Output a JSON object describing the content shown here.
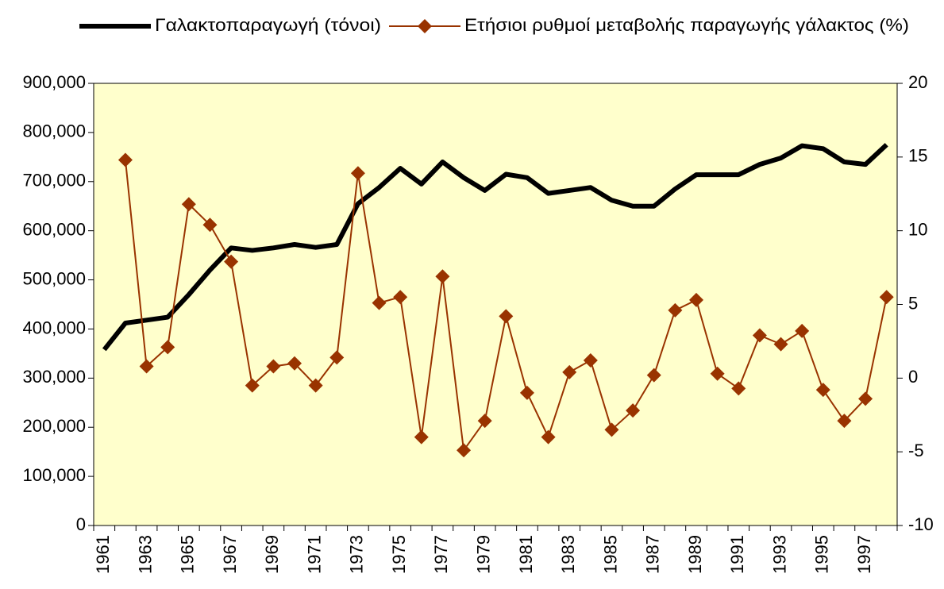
{
  "chart_data": {
    "type": "line",
    "categories": [
      "1961",
      null,
      "1963",
      null,
      "1965",
      null,
      "1967",
      null,
      "1969",
      null,
      "1971",
      null,
      "1973",
      null,
      "1975",
      null,
      "1977",
      null,
      "1979",
      null,
      "1981",
      null,
      "1983",
      null,
      "1985",
      null,
      "1987",
      null,
      "1989",
      null,
      "1991",
      null,
      "1993",
      null,
      "1995",
      null,
      "1997",
      null
    ],
    "series": [
      {
        "name": "Γαλακτοπαραγωγή (τόνοι)",
        "color": "#000000",
        "axis": "y",
        "values": [
          358000,
          412000,
          418000,
          424000,
          470000,
          520000,
          565000,
          560000,
          565000,
          572000,
          566000,
          572000,
          655000,
          688000,
          727000,
          695000,
          740000,
          708000,
          682000,
          715000,
          708000,
          676000,
          682000,
          688000,
          662000,
          650000,
          650000,
          685000,
          714000,
          714000,
          714000,
          735000,
          748000,
          773000,
          767000,
          740000,
          735000,
          775000
        ]
      },
      {
        "name": "Ετήσιοι ρυθμοί μεταβολής παραγωγής γάλακτος (%)",
        "color": "#993300",
        "axis": "y2",
        "values": [
          null,
          14.8,
          0.8,
          2.1,
          11.8,
          10.4,
          7.9,
          -0.5,
          0.8,
          1.0,
          -0.5,
          1.4,
          13.9,
          5.1,
          5.5,
          -4.0,
          6.9,
          -4.9,
          -2.9,
          4.2,
          -1.0,
          -4.0,
          0.4,
          1.2,
          -3.5,
          -2.2,
          0.2,
          4.6,
          5.3,
          0.3,
          -0.7,
          2.9,
          2.3,
          3.2,
          -0.8,
          -2.9,
          -1.4,
          5.5
        ]
      }
    ],
    "ylim": [
      0,
      900000
    ],
    "yticks": [
      0,
      {
        "value": 100000,
        "label": "100,000"
      },
      {
        "value": 200000,
        "label": "200,000"
      },
      {
        "value": 300000,
        "label": "300,000"
      },
      {
        "value": 400000,
        "label": "400,000"
      },
      {
        "value": 500000,
        "label": "500,000"
      },
      {
        "value": 600000,
        "label": "600,000"
      },
      {
        "value": 700000,
        "label": "700,000"
      },
      {
        "value": 800000,
        "label": "800,000"
      },
      {
        "value": 900000,
        "label": "900,000"
      }
    ],
    "y2lim": [
      -10,
      20
    ],
    "y2ticks": [
      -10,
      -5,
      0,
      5,
      10,
      15,
      20
    ],
    "plot_background": "#ffffcc",
    "legend": "top"
  }
}
